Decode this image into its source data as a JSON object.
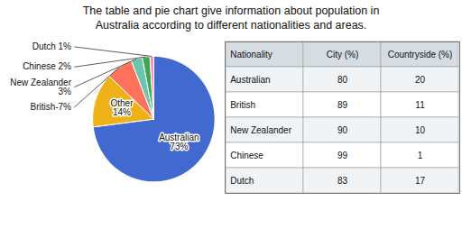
{
  "chart_data": [
    {
      "type": "pie",
      "title": "The table and pie chart give information about population in\nAustralia according to different nationalities and areas.",
      "categories": [
        "Australian",
        "Other",
        "British",
        "New Zealander",
        "Chinese",
        "Dutch"
      ],
      "values": [
        73,
        14,
        7,
        3,
        2,
        1
      ],
      "value_labels": [
        "Australian\n73%",
        "Other\n14%",
        "British-7%",
        "New Zealander\n3%",
        "Chinese 2%",
        "Dutch 1%"
      ],
      "data_labels": true
    },
    {
      "type": "table",
      "xlabel": "Nationality",
      "categories": [
        "Australian",
        "British",
        "New Zealander",
        "Chinese",
        "Dutch"
      ],
      "series": [
        {
          "name": "City (%)",
          "values": [
            80,
            89,
            90,
            99,
            83
          ]
        },
        {
          "name": "Countryside (%)",
          "values": [
            20,
            11,
            10,
            1,
            17
          ]
        }
      ]
    }
  ]
}
